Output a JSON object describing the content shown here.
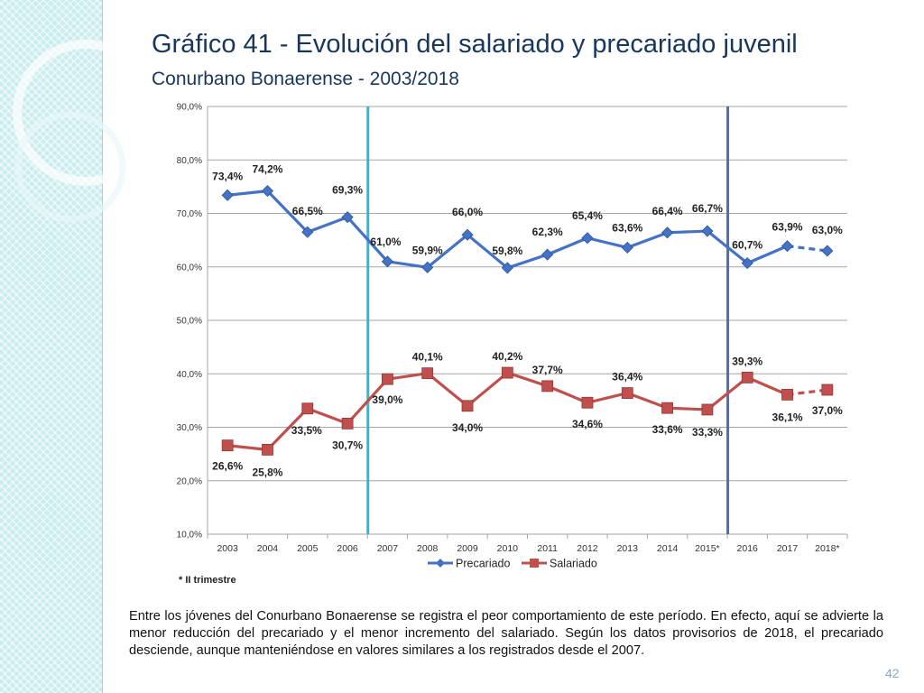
{
  "slide": {
    "title": "Gráfico 41 - Evolución del salariado y precariado juvenil",
    "subtitle": "Conurbano Bonaerense - 2003/2018",
    "footnote": "* II trimestre",
    "body": "Entre los jóvenes del Conurbano Bonaerense se registra el peor comportamiento de este período. En efecto, aquí se advierte la menor reducción del precariado y el menor incremento del salariado. Según los datos provisorios de 2018, el precariado desciende, aunque manteniéndose en valores similares a los registrados desde el 2007.",
    "page_number": "42"
  },
  "colors": {
    "title": "#17375e",
    "precariado": "#4472c4",
    "salariado": "#c0504d",
    "grid": "#a6a6a6",
    "marker_line_1": "#4bacc6",
    "marker_line_2": "#4f6fa8"
  },
  "chart_data": {
    "type": "line",
    "title": "",
    "xlabel": "",
    "ylabel": "",
    "categories": [
      "2003",
      "2004",
      "2005",
      "2006",
      "2007",
      "2008",
      "2009",
      "2010",
      "2011",
      "2012",
      "2013",
      "2014",
      "2015*",
      "2016",
      "2017",
      "2018*"
    ],
    "y_ticks": [
      10,
      20,
      30,
      40,
      50,
      60,
      70,
      80,
      90
    ],
    "y_tick_labels": [
      "10,0%",
      "20,0%",
      "30,0%",
      "40,0%",
      "50,0%",
      "60,0%",
      "70,0%",
      "80,0%",
      "90,0%"
    ],
    "ylim": [
      10,
      90
    ],
    "grid": true,
    "legend_position": "bottom",
    "vertical_markers": [
      {
        "between": [
          "2006",
          "2007"
        ],
        "color": "#4bacc6"
      },
      {
        "between": [
          "2015*",
          "2016"
        ],
        "color": "#4f6fa8"
      }
    ],
    "series": [
      {
        "name": "Precariado",
        "marker": "diamond",
        "values": [
          73.4,
          74.2,
          66.5,
          69.3,
          61.0,
          59.9,
          66.0,
          59.8,
          62.3,
          65.4,
          63.6,
          66.4,
          66.7,
          60.7,
          63.9,
          63.0
        ],
        "labels": [
          "73,4%",
          "74,2%",
          "66,5%",
          "69,3%",
          "61,0%",
          "59,9%",
          "66,0%",
          "59,8%",
          "62,3%",
          "65,4%",
          "63,6%",
          "66,4%",
          "66,7%",
          "60,7%",
          "63,9%",
          "63,0%"
        ],
        "dashed_last_segment": true
      },
      {
        "name": "Salariado",
        "marker": "square",
        "values": [
          26.6,
          25.8,
          33.5,
          30.7,
          39.0,
          40.1,
          34.0,
          40.2,
          37.7,
          34.6,
          36.4,
          33.6,
          33.3,
          39.3,
          36.1,
          37.0
        ],
        "labels": [
          "26,6%",
          "25,8%",
          "33,5%",
          "30,7%",
          "39,0%",
          "40,1%",
          "34,0%",
          "40,2%",
          "37,7%",
          "34,6%",
          "36,4%",
          "33,6%",
          "33,3%",
          "39,3%",
          "36,1%",
          "37,0%"
        ],
        "dashed_last_segment": true
      }
    ]
  }
}
